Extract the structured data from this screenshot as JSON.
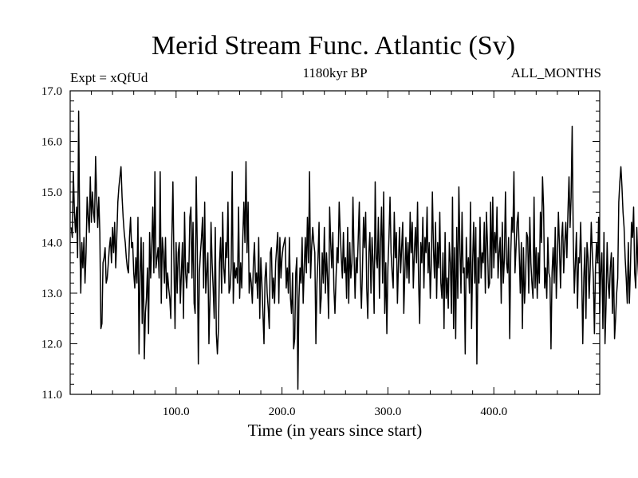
{
  "chart_data": {
    "type": "line",
    "title": "Merid Stream Func. Atlantic (Sv)",
    "subtitle_left": "Expt = xQfUd",
    "subtitle_center": "1180kyr BP",
    "subtitle_right": "ALL_MONTHS",
    "xlabel": "Time (in years since start)",
    "ylabel": "",
    "xlim": [
      0,
      500
    ],
    "ylim": [
      11.0,
      17.0
    ],
    "x_ticks": [
      100,
      200,
      300,
      400
    ],
    "x_tick_labels": [
      "100.0",
      "200.0",
      "300.0",
      "400.0"
    ],
    "y_ticks": [
      11,
      12,
      13,
      14,
      15,
      16,
      17
    ],
    "y_tick_labels": [
      "11.0",
      "12.0",
      "13.0",
      "14.0",
      "15.0",
      "16.0",
      "17.0"
    ],
    "grid": false,
    "series": [
      {
        "name": "Merid Stream Func. Atlantic",
        "color": "#000000",
        "x_start": 1,
        "x_step": 1,
        "values": [
          14.3,
          14.1,
          15.4,
          14.6,
          14.2,
          14.7,
          13.7,
          16.6,
          14.2,
          13.0,
          14.0,
          13.5,
          14.1,
          13.2,
          13.8,
          14.9,
          14.5,
          14.2,
          15.3,
          14.4,
          15.0,
          14.6,
          14.4,
          15.7,
          14.9,
          14.3,
          14.9,
          14.2,
          12.3,
          12.4,
          13.6,
          13.7,
          13.9,
          13.2,
          13.3,
          13.6,
          13.9,
          14.1,
          13.6,
          14.3,
          13.8,
          14.4,
          13.5,
          14.1,
          14.8,
          15.1,
          15.3,
          15.5,
          14.9,
          14.5,
          14.2,
          14.0,
          13.7,
          13.5,
          13.4,
          14.1,
          14.5,
          13.9,
          14.0,
          13.4,
          13.1,
          13.7,
          13.2,
          14.5,
          11.8,
          13.4,
          14.1,
          12.4,
          14.0,
          11.7,
          12.6,
          12.9,
          13.5,
          12.2,
          14.2,
          13.3,
          13.9,
          14.7,
          13.4,
          15.4,
          13.5,
          13.7,
          13.9,
          13.3,
          15.4,
          12.8,
          14.1,
          13.8,
          13.2,
          14.1,
          12.9,
          13.4,
          13.1,
          12.9,
          12.5,
          14.1,
          15.2,
          13.6,
          12.3,
          14.0,
          13.0,
          13.8,
          14.0,
          12.8,
          13.4,
          14.0,
          12.5,
          14.6,
          13.4,
          13.1,
          13.6,
          13.4,
          14.5,
          14.7,
          13.3,
          14.4,
          12.8,
          12.6,
          15.3,
          13.9,
          11.6,
          13.4,
          13.8,
          14.1,
          14.5,
          13.1,
          14.8,
          13.0,
          13.4,
          13.8,
          12.0,
          12.9,
          14.4,
          13.6,
          13.1,
          12.5,
          14.3,
          12.2,
          11.8,
          12.3,
          13.6,
          14.1,
          13.0,
          14.6,
          13.5,
          13.2,
          14.0,
          13.7,
          14.8,
          13.0,
          13.1,
          13.5,
          15.4,
          12.8,
          13.6,
          13.3,
          13.5,
          13.2,
          14.7,
          12.9,
          13.6,
          13.1,
          14.1,
          14.8,
          14.0,
          15.6,
          13.8,
          14.8,
          13.0,
          13.4,
          13.2,
          12.8,
          13.6,
          14.0,
          13.2,
          13.4,
          12.9,
          14.1,
          12.5,
          13.7,
          13.2,
          12.6,
          12.0,
          13.3,
          13.6,
          13.0,
          12.7,
          12.3,
          13.8,
          13.9,
          12.9,
          13.3,
          12.8,
          13.6,
          13.9,
          14.2,
          12.8,
          14.1,
          13.3,
          13.7,
          13.9,
          14.0,
          14.1,
          13.1,
          13.5,
          13.0,
          14.1,
          12.9,
          12.6,
          13.4,
          11.9,
          12.1,
          13.4,
          13.7,
          11.1,
          12.9,
          13.5,
          13.2,
          14.1,
          12.8,
          13.5,
          14.1,
          13.4,
          14.5,
          13.6,
          15.4,
          13.3,
          13.9,
          14.3,
          14.0,
          13.8,
          12.0,
          13.2,
          13.7,
          14.4,
          12.6,
          12.9,
          13.8,
          13.2,
          14.3,
          13.0,
          13.8,
          13.3,
          12.5,
          14.7,
          14.0,
          13.5,
          14.2,
          13.1,
          12.6,
          13.3,
          13.9,
          13.6,
          14.8,
          14.2,
          13.7,
          13.3,
          14.2,
          13.4,
          13.7,
          12.9,
          14.3,
          12.8,
          14.0,
          13.3,
          13.6,
          14.9,
          13.8,
          12.9,
          13.7,
          13.4,
          14.1,
          14.8,
          13.3,
          12.7,
          13.5,
          14.5,
          13.9,
          14.6,
          13.1,
          12.5,
          13.8,
          14.2,
          13.0,
          14.1,
          13.6,
          12.6,
          15.2,
          13.7,
          13.5,
          14.5,
          12.9,
          14.0,
          14.7,
          13.2,
          15.0,
          12.6,
          13.6,
          12.2,
          13.5,
          14.1,
          14.9,
          13.8,
          13.4,
          13.1,
          14.6,
          13.7,
          14.2,
          12.8,
          13.6,
          14.3,
          13.4,
          13.9,
          14.4,
          12.6,
          13.4,
          14.1,
          13.3,
          14.0,
          13.2,
          14.6,
          13.8,
          14.4,
          13.1,
          13.8,
          14.3,
          13.6,
          14.8,
          13.2,
          12.4,
          14.0,
          13.6,
          14.5,
          13.1,
          14.1,
          13.8,
          14.7,
          13.4,
          14.0,
          12.9,
          13.6,
          15.0,
          13.9,
          13.3,
          14.4,
          12.9,
          14.0,
          13.5,
          14.6,
          13.2,
          12.9,
          13.8,
          12.3,
          14.2,
          12.9,
          13.3,
          12.7,
          14.0,
          13.6,
          12.6,
          14.9,
          12.3,
          13.9,
          12.1,
          14.3,
          12.9,
          15.1,
          13.9,
          13.0,
          14.6,
          13.4,
          13.5,
          11.8,
          14.1,
          13.3,
          13.7,
          13.0,
          14.8,
          12.3,
          13.6,
          14.4,
          13.2,
          14.3,
          11.6,
          13.7,
          13.2,
          14.5,
          13.3,
          13.8,
          13.6,
          14.4,
          13.0,
          14.6,
          14.0,
          13.1,
          13.2,
          14.8,
          13.3,
          14.9,
          13.5,
          14.2,
          13.8,
          14.7,
          13.3,
          13.8,
          14.1,
          12.8,
          14.4,
          13.2,
          13.7,
          15.0,
          13.6,
          13.4,
          14.1,
          12.1,
          13.8,
          14.5,
          14.2,
          15.4,
          13.4,
          13.9,
          14.4,
          14.6,
          13.8,
          13.0,
          14.0,
          12.3,
          13.9,
          12.8,
          13.3,
          14.2,
          14.1,
          13.0,
          14.5,
          13.6,
          13.2,
          12.9,
          14.9,
          13.1,
          13.9,
          12.9,
          13.8,
          13.2,
          14.6,
          14.0,
          15.3,
          14.7,
          13.1,
          13.5,
          12.9,
          14.1,
          13.4,
          13.3,
          11.9,
          13.4,
          13.9,
          13.2,
          14.3,
          12.9,
          13.7,
          14.6,
          13.9,
          13.1,
          14.1,
          14.4,
          13.4,
          14.0,
          14.4,
          13.7,
          14.6,
          15.3,
          14.3,
          14.9,
          16.3,
          14.1,
          13.0,
          13.6,
          14.2,
          12.7,
          13.7,
          13.6,
          14.4,
          13.4,
          12.0,
          13.3,
          13.9,
          12.5,
          14.0,
          13.7,
          12.9,
          13.5,
          14.4,
          13.8,
          13.3,
          12.2,
          13.5,
          14.0,
          13.6,
          14.5,
          12.6,
          13.4,
          13.8,
          12.3,
          14.2,
          12.0,
          12.8,
          14.0,
          13.2,
          12.9,
          13.5,
          13.8,
          12.6,
          13.7,
          12.1,
          12.5,
          13.0,
          13.3,
          14.8,
          15.2,
          15.5,
          15.1,
          14.6,
          14.3,
          13.7,
          13.3,
          12.8,
          14.0,
          12.8,
          13.5,
          14.4,
          14.1,
          14.7,
          13.4,
          13.1,
          14.3,
          13.6,
          13.2,
          12.9,
          13.6,
          13.8
        ]
      }
    ]
  }
}
